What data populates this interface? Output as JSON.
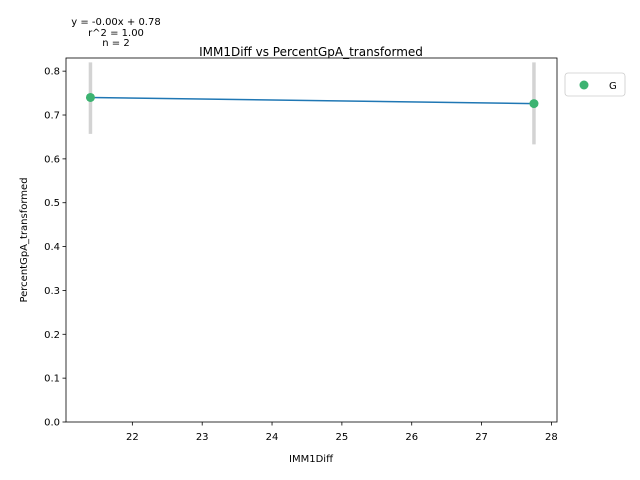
{
  "chart_data": {
    "type": "scatter",
    "title": "IMM1Diff vs PercentGpA_transformed",
    "xlabel": "IMM1Diff",
    "ylabel": "PercentGpA_transformed",
    "xlim": [
      21.05,
      28.08
    ],
    "ylim": [
      0.0,
      0.83
    ],
    "xticks": [
      22,
      23,
      24,
      25,
      26,
      27,
      28
    ],
    "yticks": [
      0.0,
      0.1,
      0.2,
      0.3,
      0.4,
      0.5,
      0.6,
      0.7,
      0.8
    ],
    "points": [
      {
        "x": 21.4,
        "y": 0.74,
        "err_low": 0.657,
        "err_high": 0.82
      },
      {
        "x": 27.75,
        "y": 0.726,
        "err_low": 0.633,
        "err_high": 0.82
      }
    ],
    "fit_line": {
      "x": [
        21.4,
        27.75
      ],
      "y": [
        0.74,
        0.726
      ]
    },
    "annotations": [
      "y = -0.00x + 0.78",
      "r^2 = 1.00",
      "n = 2"
    ],
    "legend": {
      "placement": "outside-top-right",
      "entries": [
        {
          "label": "G",
          "color": "#3cb371"
        }
      ]
    },
    "colors": {
      "point": "#3cb371",
      "line": "#1f77b4",
      "errorbar": "#d3d3d3"
    },
    "grid": false
  }
}
